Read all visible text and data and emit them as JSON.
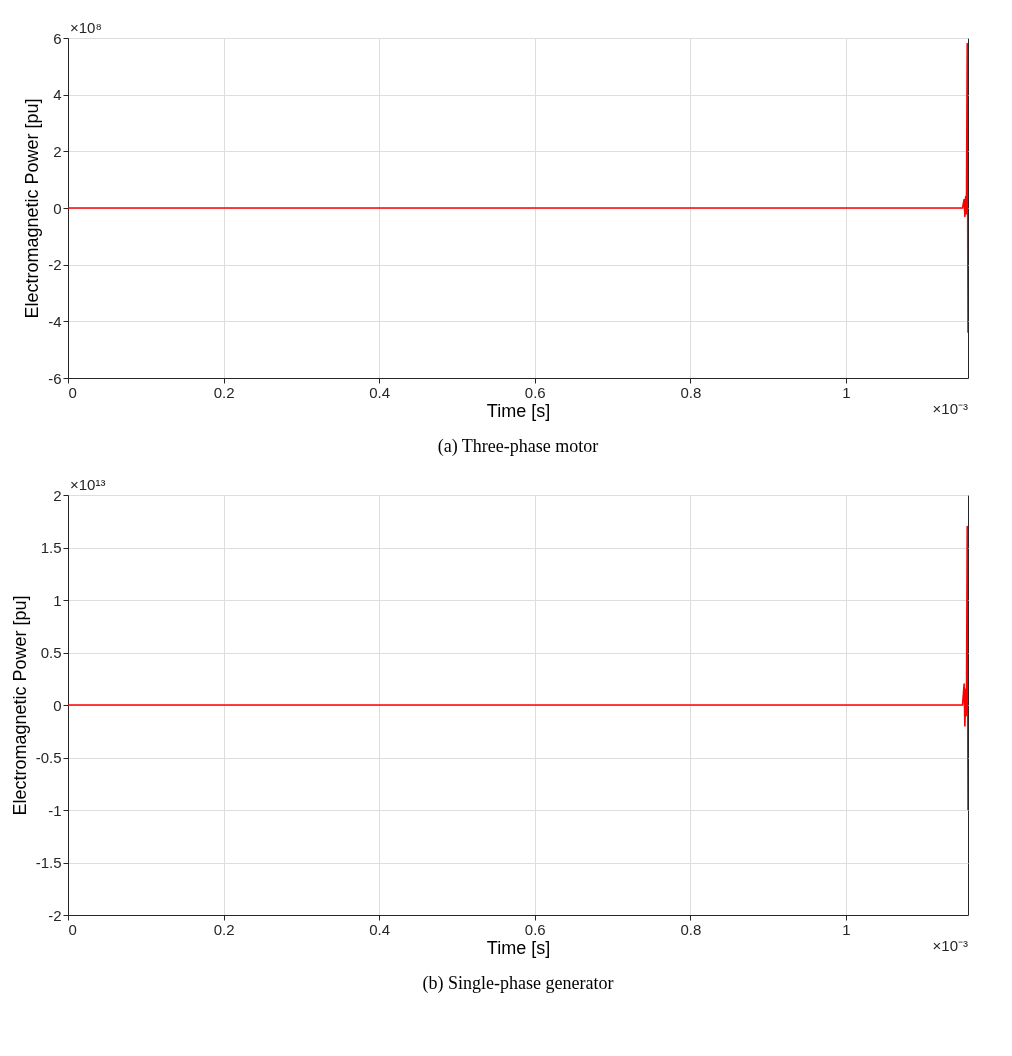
{
  "chart_data": [
    {
      "type": "line",
      "title": "(a) Three-phase motor",
      "xlabel": "Time [s]",
      "ylabel": "Electromagnetic Power [pu]",
      "annotations": [
        "×10⁸",
        "×10⁻³"
      ],
      "x": [
        0,
        0.5,
        1.08,
        1.145,
        1.15,
        1.152,
        1.153,
        1.154,
        1.155,
        1.156,
        1.157
      ],
      "series": [
        {
          "color": "#ff0000",
          "values": [
            0,
            0,
            0,
            0,
            0,
            0.3,
            -0.3,
            0.4,
            -0.2,
            5.8,
            -4.4
          ]
        }
      ],
      "xlim": [
        0,
        1.157
      ],
      "xticks": [
        0,
        0.2,
        0.4,
        0.6,
        0.8,
        1
      ],
      "ylim": [
        -6,
        6
      ],
      "yticks": [
        -6,
        -4,
        -2,
        0,
        2,
        4,
        6
      ],
      "grid": true
    },
    {
      "type": "line",
      "title": "(b) Single-phase generator",
      "xlabel": "Time [s]",
      "ylabel": "Electromagnetic Power [pu]",
      "annotations": [
        "×10¹³",
        "×10⁻³"
      ],
      "x": [
        0,
        0.5,
        1,
        1.145,
        1.15,
        1.152,
        1.153,
        1.154,
        1.155,
        1.156,
        1.157
      ],
      "series": [
        {
          "color": "#ff0000",
          "values": [
            0,
            0,
            0,
            0,
            0,
            0.2,
            -0.2,
            0.15,
            -0.1,
            1.7,
            -1
          ]
        }
      ],
      "xlim": [
        0,
        1.157
      ],
      "xticks": [
        0,
        0.2,
        0.4,
        0.6,
        0.8,
        1
      ],
      "ylim": [
        -2,
        2
      ],
      "yticks": [
        -2,
        -1.5,
        -1,
        -0.5,
        0,
        0.5,
        1,
        1.5,
        2
      ],
      "grid": true
    }
  ]
}
